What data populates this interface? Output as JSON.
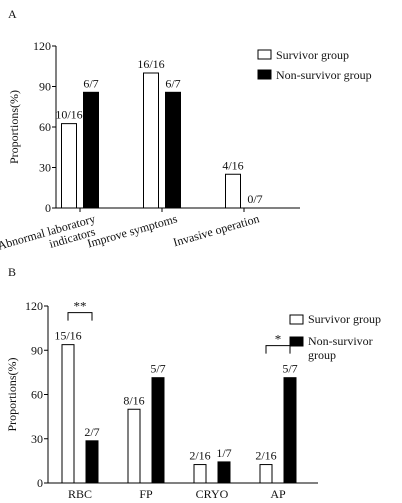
{
  "chart_data": [
    {
      "panel": "A",
      "type": "bar",
      "ylabel": "Proportions(%)",
      "ylim": [
        0,
        120
      ],
      "yticks": [
        "0",
        "30",
        "60",
        "90",
        "120"
      ],
      "categories": [
        "Abnormal laboratory indicators",
        "Improve symptoms",
        "Invasive operation"
      ],
      "category_lines": [
        [
          "Abnormal laboratory",
          "indicators"
        ],
        [
          "Improve symptoms"
        ],
        [
          "Invasive operation"
        ]
      ],
      "series": [
        {
          "name": "Survivor group",
          "fill": "#ffffff",
          "values": [
            62.5,
            100,
            25
          ],
          "labels": [
            "10/16",
            "16/16",
            "4/16"
          ]
        },
        {
          "name": "Non-survivor group",
          "fill": "#000000",
          "values": [
            85.7,
            85.7,
            0
          ],
          "labels": [
            "6/7",
            "6/7",
            "0/7"
          ]
        }
      ],
      "legend": "top-right"
    },
    {
      "panel": "B",
      "type": "bar",
      "ylabel": "Proportions(%)",
      "ylim": [
        0,
        120
      ],
      "yticks": [
        "0",
        "30",
        "60",
        "90",
        "120"
      ],
      "categories": [
        "RBC",
        "FP",
        "CRYO",
        "AP"
      ],
      "series": [
        {
          "name": "Survivor  group",
          "fill": "#ffffff",
          "values": [
            93.8,
            50,
            12.5,
            12.5
          ],
          "labels": [
            "15/16",
            "8/16",
            "2/16",
            "2/16"
          ]
        },
        {
          "name": "Non-survivor group",
          "name_lines": [
            "Non-survivor",
            "group"
          ],
          "fill": "#000000",
          "values": [
            28.6,
            71.4,
            14.3,
            71.4
          ],
          "labels": [
            "2/7",
            "5/7",
            "1/7",
            "5/7"
          ]
        }
      ],
      "significance": [
        {
          "category": "RBC",
          "label": "**"
        },
        {
          "category": "AP",
          "label": "*"
        }
      ],
      "legend": "top-right"
    }
  ]
}
